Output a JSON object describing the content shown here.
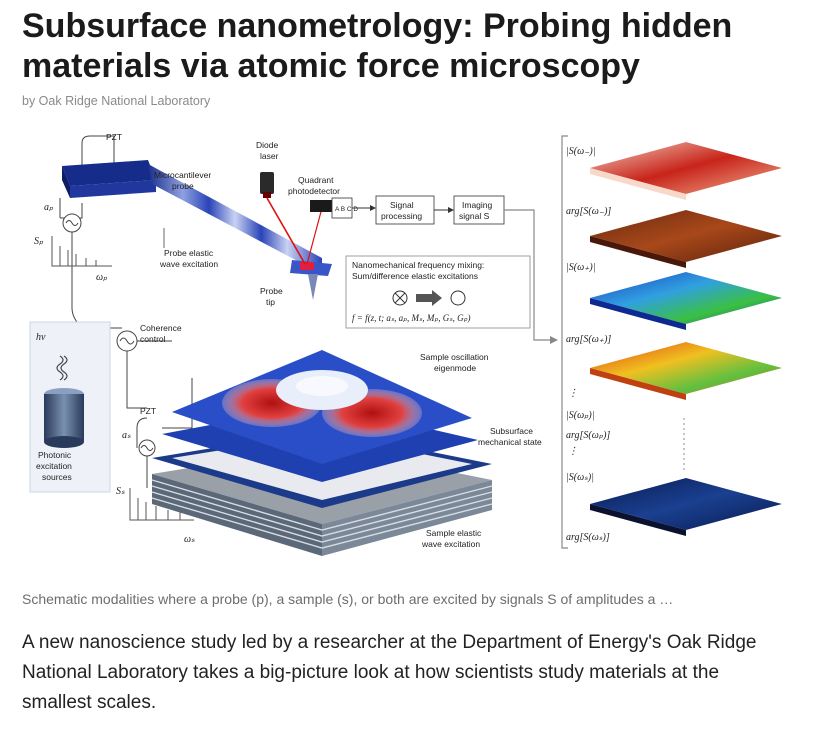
{
  "article": {
    "title": "Subsurface nanometrology: Probing hidden materials via atomic force microscopy",
    "byline": "by Oak Ridge National Laboratory",
    "caption": "Schematic modalities where a probe (p), a sample (s), or both are excited by signals S of amplitudes a …",
    "body": "A new nanoscience study led by a researcher at the Department of Energy's Oak Ridge National Laboratory takes a big-picture look at how scientists study materials at the smallest scales."
  },
  "figure": {
    "labels": {
      "pzt_top": "PZT",
      "microcantilever_1": "Microcantilever",
      "microcantilever_2": "probe",
      "diode_1": "Diode",
      "diode_2": "laser",
      "quadrant_1": "Quadrant",
      "quadrant_2": "photodetector",
      "quad_cells": "A B C D",
      "signal_processing_1": "Signal",
      "signal_processing_2": "processing",
      "imaging_signal_1": "Imaging",
      "imaging_signal_2": "signal S",
      "probe_elastic_1": "Probe elastic",
      "probe_elastic_2": "wave excitation",
      "probe_tip_1": "Probe",
      "probe_tip_2": "tip",
      "mixing_1": "Nanomechanical frequency mixing:",
      "mixing_2": "Sum/difference elastic excitations",
      "formula": "f = f(z, t; aₛ, aₚ, Mₛ, Mₚ, Gₛ, Gₚ)",
      "coherence_1": "Coherence",
      "coherence_2": "control",
      "hv": "hv",
      "photonic_1": "Photonic",
      "photonic_2": "excitation",
      "photonic_3": "sources",
      "pzt_bottom": "PZT",
      "sample_osc_1": "Sample oscillation",
      "sample_osc_2": "eigenmode",
      "subsurface_1": "Subsurface",
      "subsurface_2": "mechanical state",
      "sample_elastic_1": "Sample elastic",
      "sample_elastic_2": "wave excitation",
      "a_p": "aₚ",
      "s_p": "Sₚ",
      "w_p": "ωₚ",
      "a_s": "aₛ",
      "s_s": "Sₛ",
      "w_s": "ωₛ"
    },
    "stack_labels": [
      "|S(ω₋)|",
      "arg[S(ω₋)]",
      "|S(ω₊)|",
      "arg[S(ω₊)]",
      "|S(ωₚ)|",
      "arg[S(ωₚ)]",
      "|S(ωₛ)|",
      "arg[S(ωₛ)]"
    ]
  }
}
